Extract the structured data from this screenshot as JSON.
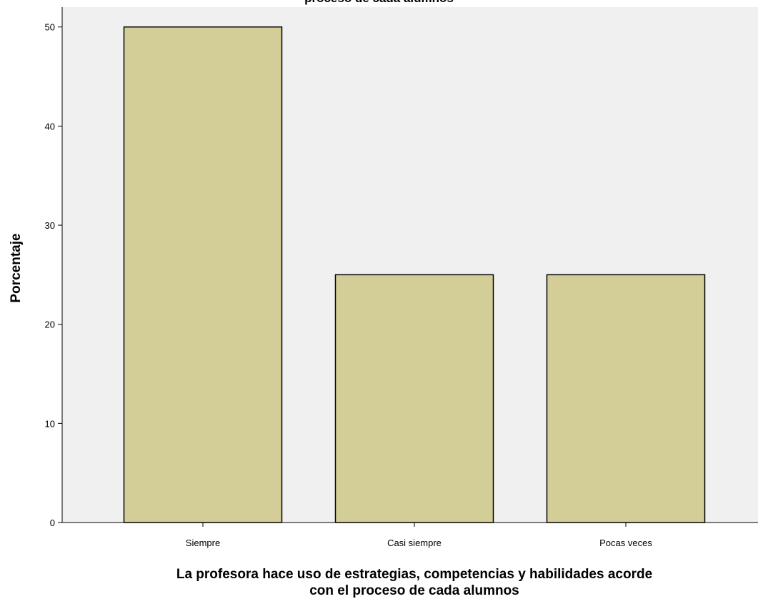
{
  "chart_data": {
    "type": "bar",
    "title": "La profesora hace uso de estrategias, competencias y habilidades acorde con el proceso de cada alumnos",
    "title_visible_fragment": "proceso de cada alumnos",
    "categories": [
      "Siempre",
      "Casi siempre",
      "Pocas veces"
    ],
    "values": [
      50,
      25,
      25
    ],
    "ylabel": "Porcentaje",
    "xlabel_lines": [
      "La profesora hace uso de estrategias, competencias y habilidades acorde",
      "con el proceso de cada alumnos"
    ],
    "ylim": [
      0,
      52
    ],
    "yticks": [
      0,
      10,
      20,
      30,
      40,
      50
    ],
    "grid": false,
    "legend": "none",
    "colors": {
      "plot_background": "#f0f0f0",
      "bar_fill": "#d3ce97",
      "bar_stroke": "#000000"
    }
  }
}
